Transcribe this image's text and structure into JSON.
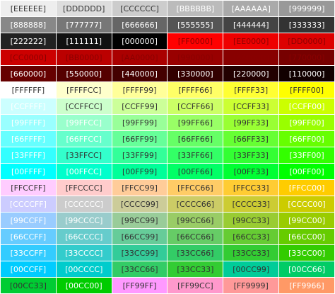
{
  "palette": {
    "rows": [
      [
        "[EEEEEE]",
        "[DDDDDD]",
        "[CCCCCC]",
        "[BBBBBB]",
        "[AAAAAA]",
        "[999999]"
      ],
      [
        "[888888]",
        "[777777]",
        "[666666]",
        "[555555]",
        "[444444]",
        "[333333]"
      ],
      [
        "[222222]",
        "[111111]",
        "[000000]",
        "[FF0000]",
        "[EE0000]",
        "[DD0000]"
      ],
      [
        "[CC0000]",
        "[BB0000]",
        "[AA0000]",
        "[990000]",
        "[880000]",
        "[770000]"
      ],
      [
        "[660000]",
        "[550000]",
        "[440000]",
        "[330000]",
        "[220000]",
        "[110000]"
      ],
      [
        "[FFFFFF]",
        "[FFFFCC]",
        "[FFFF99]",
        "[FFFF66]",
        "[FFFF33]",
        "[FFFF00]"
      ],
      [
        "[CCFFFF]",
        "[CCFFCC]",
        "[CCFF99]",
        "[CCFF66]",
        "[CCFF33]",
        "[CCFF00]"
      ],
      [
        "[99FFFF]",
        "[99FFCC]",
        "[99FF99]",
        "[99FF66]",
        "[99FF33]",
        "[99FF00]"
      ],
      [
        "[66FFFF]",
        "[66FFCC]",
        "[66FF99]",
        "[66FF66]",
        "[66FF33]",
        "[66FF00]"
      ],
      [
        "[33FFFF]",
        "[33FFCC]",
        "[33FF99]",
        "[33FF66]",
        "[33FF33]",
        "[33FF00]"
      ],
      [
        "[00FFFF]",
        "[00FFCC]",
        "[00FF99]",
        "[00FF66]",
        "[00FF33]",
        "[00FF00]"
      ],
      [
        "[FFCCFF]",
        "[FFCCCC]",
        "[FFCC99]",
        "[FFCC66]",
        "[FFCC33]",
        "[FFCC00]"
      ],
      [
        "[CCCCFF]",
        "[CCCCCC]",
        "[CCCC99]",
        "[CCCC66]",
        "[CCCC33]",
        "[CCCC00]"
      ],
      [
        "[99CCFF]",
        "[99CCCC]",
        "[99CC99]",
        "[99CC66]",
        "[99CC33]",
        "[99CC00]"
      ],
      [
        "[66CCFF]",
        "[66CCCC]",
        "[66CC99]",
        "[66CC66]",
        "[66CC33]",
        "[66CC00]"
      ],
      [
        "[33CCFF]",
        "[33CCCC]",
        "[33CC99]",
        "[33CC66]",
        "[33CC33]",
        "[33CC00]"
      ],
      [
        "[00CCFF]",
        "[00CCCC]",
        "[33CC66]",
        "[33CC33]",
        "[00CC99]",
        "[00CC66]"
      ],
      [
        "[00CC33]",
        "[00CC00]",
        "[FF99FF]",
        "[FF99CC]",
        "[FF9999]",
        "[FF9966]"
      ]
    ],
    "colors": [
      [
        "#EEEEEE",
        "#DDDDDD",
        "#CCCCCC",
        "#BBBBBB",
        "#AAAAAA",
        "#999999"
      ],
      [
        "#888888",
        "#777777",
        "#666666",
        "#555555",
        "#444444",
        "#333333"
      ],
      [
        "#222222",
        "#111111",
        "#000000",
        "#FF0000",
        "#EE0000",
        "#DD0000"
      ],
      [
        "#CC0000",
        "#BB0000",
        "#AA0000",
        "#990000",
        "#880000",
        "#770000"
      ],
      [
        "#660000",
        "#550000",
        "#440000",
        "#330000",
        "#220000",
        "#110000"
      ],
      [
        "#FFFFFF",
        "#FFFFCC",
        "#FFFF99",
        "#FFFF66",
        "#FFFF33",
        "#FFFF00"
      ],
      [
        "#CCFFFF",
        "#CCFFCC",
        "#CCFF99",
        "#CCFF66",
        "#CCFF33",
        "#CCFF00"
      ],
      [
        "#99FFFF",
        "#99FFCC",
        "#99FF99",
        "#99FF66",
        "#99FF33",
        "#99FF00"
      ],
      [
        "#66FFFF",
        "#66FFCC",
        "#66FF99",
        "#66FF66",
        "#66FF33",
        "#66FF00"
      ],
      [
        "#33FFFF",
        "#33FFCC",
        "#33FF99",
        "#33FF66",
        "#33FF33",
        "#33FF00"
      ],
      [
        "#00FFFF",
        "#00FFCC",
        "#00FF99",
        "#00FF66",
        "#00FF33",
        "#00FF00"
      ],
      [
        "#FFCCFF",
        "#FFCCCC",
        "#FFCC99",
        "#FFCC66",
        "#FFCC33",
        "#FFCC00"
      ],
      [
        "#CCCCFF",
        "#CCCCCC",
        "#CCCC99",
        "#CCCC66",
        "#CCCC33",
        "#CCCC00"
      ],
      [
        "#99CCFF",
        "#99CCCC",
        "#99CC99",
        "#99CC66",
        "#99CC33",
        "#99CC00"
      ],
      [
        "#66CCFF",
        "#66CCCC",
        "#66CC99",
        "#66CC66",
        "#66CC33",
        "#66CC00"
      ],
      [
        "#33CCFF",
        "#33CCCC",
        "#33CC99",
        "#33CC66",
        "#33CC33",
        "#33CC00"
      ],
      [
        "#00CCFF",
        "#00CCCC",
        "#33CC66",
        "#33CC33",
        "#00CC99",
        "#00CC66"
      ],
      [
        "#00CC33",
        "#00CC00",
        "#FF99FF",
        "#FF99CC",
        "#FF9999",
        "#FF9966"
      ]
    ],
    "text_colors": [
      [
        "dark-gray",
        "dark-gray",
        "dark-gray",
        "white",
        "white",
        "white"
      ],
      [
        "white",
        "white",
        "white",
        "white",
        "white",
        "white"
      ],
      [
        "white",
        "white",
        "white",
        "dark-red",
        "dark-red",
        "dark-red"
      ],
      [
        "dark-red",
        "dark-red",
        "dark-red",
        "dark-red",
        "dark-red",
        "dark-red"
      ],
      [
        "white",
        "white",
        "white",
        "white",
        "white",
        "white"
      ],
      [
        "dark-gray",
        "dark-gray",
        "dark-gray",
        "dark-gray",
        "dark-gray",
        "dark-gray"
      ],
      [
        "white",
        "dark-gray",
        "dark-gray",
        "dark-gray",
        "dark-gray",
        "white"
      ],
      [
        "white",
        "white",
        "dark-gray",
        "dark-gray",
        "dark-gray",
        "white"
      ],
      [
        "white",
        "white",
        "dark-gray",
        "dark-gray",
        "dark-gray",
        "white"
      ],
      [
        "white",
        "dark-gray",
        "dark-gray",
        "dark-gray",
        "dark-gray",
        "white"
      ],
      [
        "white",
        "white",
        "dark-gray",
        "dark-gray",
        "dark-gray",
        "white"
      ],
      [
        "dark-gray",
        "dark-gray",
        "dark-gray",
        "dark-gray",
        "dark-gray",
        "white"
      ],
      [
        "white",
        "white",
        "dark-gray",
        "dark-gray",
        "dark-gray",
        "white"
      ],
      [
        "white",
        "white",
        "dark-gray",
        "dark-gray",
        "dark-gray",
        "white"
      ],
      [
        "white",
        "white",
        "dark-gray",
        "dark-gray",
        "dark-gray",
        "white"
      ],
      [
        "white",
        "white",
        "dark-gray",
        "dark-gray",
        "dark-gray",
        "white"
      ],
      [
        "white",
        "white",
        "dark-gray",
        "dark-gray",
        "dark-gray",
        "white"
      ],
      [
        "dark-gray",
        "white",
        "dark-gray",
        "dark-gray",
        "dark-gray",
        "white"
      ]
    ]
  }
}
